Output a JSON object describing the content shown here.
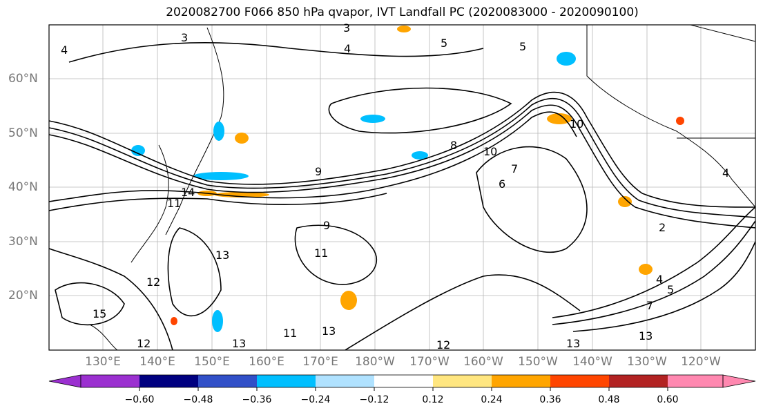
{
  "title": "2020082700 F066 850 hPa qvapor, IVT Landfall PC (2020083000 - 2020090100)",
  "map": {
    "lat_labels": [
      {
        "label": "60°N",
        "lat": 60
      },
      {
        "label": "50°N",
        "lat": 50
      },
      {
        "label": "40°N",
        "lat": 40
      },
      {
        "label": "30°N",
        "lat": 30
      },
      {
        "label": "20°N",
        "lat": 20
      }
    ],
    "lon_labels": [
      {
        "label": "130°E",
        "lon": 130
      },
      {
        "label": "140°E",
        "lon": 140
      },
      {
        "label": "150°E",
        "lon": 150
      },
      {
        "label": "160°E",
        "lon": 160
      },
      {
        "label": "170°E",
        "lon": 170
      },
      {
        "label": "180°W",
        "lon": 180
      },
      {
        "label": "170°W",
        "lon": 190
      },
      {
        "label": "160°W",
        "lon": 200
      },
      {
        "label": "150°W",
        "lon": 210
      },
      {
        "label": "140°W",
        "lon": 220
      },
      {
        "label": "130°W",
        "lon": 230
      },
      {
        "label": "120°W",
        "lon": 240
      }
    ],
    "lat_range": [
      10,
      70
    ],
    "lon_range": [
      120,
      250
    ],
    "contour_labels": [
      "3",
      "4",
      "5",
      "7",
      "8",
      "9",
      "10",
      "11",
      "12",
      "13",
      "14",
      "15",
      "6",
      "2"
    ]
  },
  "colorbar": {
    "ticks": [
      "−0.60",
      "−0.48",
      "−0.36",
      "−0.24",
      "−0.12",
      "0.12",
      "0.24",
      "0.36",
      "0.48",
      "0.60"
    ],
    "colors": [
      "#9b30d0",
      "#000080",
      "#3150c8",
      "#00bfff",
      "#b0e2ff",
      "#ffffff",
      "#ffe680",
      "#ffa500",
      "#ff4500",
      "#b22222",
      "#ff88b0"
    ]
  }
}
